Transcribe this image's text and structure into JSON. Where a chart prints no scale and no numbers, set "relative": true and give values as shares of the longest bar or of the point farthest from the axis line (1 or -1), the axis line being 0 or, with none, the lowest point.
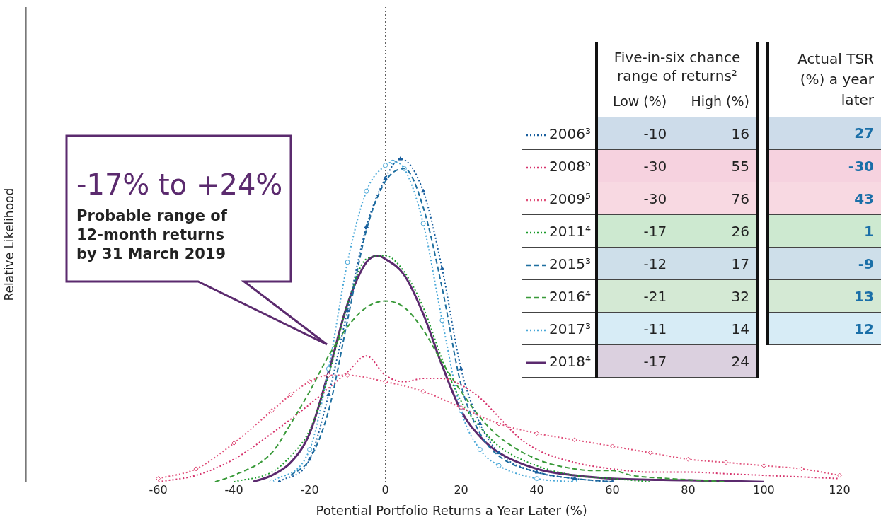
{
  "chart_data": {
    "type": "line",
    "relative": true,
    "xlabel": "Potential Portfolio Returns a Year Later (%)",
    "ylabel": "Relative Likelihood",
    "xlim": [
      -95,
      130
    ],
    "xticks": [
      -60,
      -40,
      -20,
      0,
      20,
      40,
      60,
      80,
      100,
      120
    ],
    "tick_labels": "x",
    "grid": false,
    "legend": "right",
    "ref_lines": [
      {
        "axis": "x",
        "value": 0,
        "color": "#555555",
        "line_style": "dotted"
      }
    ],
    "annotations": [
      "-17% to +24%",
      "Probable range of 12-month returns by 31 March 2019",
      "Five-in-six chance range of returns²",
      "Low (%)",
      "High (%)",
      "Actual TSR (%) a year later",
      "-10",
      "16",
      "27",
      "-30",
      "55",
      "-30",
      "-30",
      "76",
      "43",
      "-17",
      "26",
      "1",
      "-12",
      "17",
      "-9",
      "-21",
      "32",
      "13",
      "-11",
      "14",
      "12",
      "-17",
      "24",
      null
    ],
    "series": [
      {
        "name": "2006³",
        "color": "#1a5f9e",
        "line_style": "dotted",
        "marker": "triangle",
        "x": [
          -28,
          -20,
          -15,
          -10,
          -5,
          0,
          4,
          10,
          15,
          20,
          25,
          30,
          40,
          50,
          60
        ],
        "values": [
          0,
          0.07,
          0.27,
          0.53,
          0.79,
          0.94,
          1,
          0.9,
          0.66,
          0.35,
          0.18,
          0.09,
          0.03,
          0.01,
          0
        ]
      },
      {
        "name": "2008⁵",
        "color": "#d6336c",
        "line_style": "dotted",
        "marker": "none",
        "x": [
          -60,
          -50,
          -40,
          -30,
          -20,
          -15,
          -10,
          -5,
          0,
          5,
          10,
          15,
          20,
          25,
          30,
          35,
          40,
          50,
          60,
          70,
          80,
          90,
          100,
          110,
          120
        ],
        "values": [
          0,
          0.02,
          0.07,
          0.15,
          0.24,
          0.29,
          0.34,
          0.39,
          0.33,
          0.31,
          0.32,
          0.32,
          0.3,
          0.26,
          0.2,
          0.14,
          0.1,
          0.06,
          0.04,
          0.03,
          0.03,
          0.025,
          0.02,
          0.015,
          0.01
        ]
      },
      {
        "name": "2009⁵",
        "color": "#e0507a",
        "line_style": "dotted",
        "marker": "diamond",
        "x": [
          -60,
          -50,
          -40,
          -30,
          -25,
          -20,
          -15,
          -10,
          0,
          10,
          20,
          30,
          40,
          50,
          60,
          70,
          80,
          90,
          100,
          110,
          120
        ],
        "values": [
          0.01,
          0.04,
          0.12,
          0.22,
          0.27,
          0.31,
          0.33,
          0.33,
          0.31,
          0.28,
          0.23,
          0.18,
          0.15,
          0.13,
          0.11,
          0.09,
          0.07,
          0.06,
          0.05,
          0.04,
          0.02
        ]
      },
      {
        "name": "2011⁴",
        "color": "#1a9a2a",
        "line_style": "dotted",
        "marker": "none",
        "x": [
          -40,
          -30,
          -25,
          -20,
          -15,
          -10,
          -5,
          0,
          5,
          10,
          15,
          20,
          25,
          30,
          40,
          50,
          60,
          70
        ],
        "values": [
          0,
          0.03,
          0.08,
          0.16,
          0.33,
          0.55,
          0.69,
          0.7,
          0.65,
          0.54,
          0.38,
          0.25,
          0.17,
          0.11,
          0.05,
          0.02,
          0.01,
          0
        ]
      },
      {
        "name": "2015³",
        "color": "#1f6fa0",
        "line_style": "dashed",
        "marker": "none",
        "x": [
          -25,
          -20,
          -15,
          -10,
          -5,
          0,
          5,
          10,
          15,
          20,
          25,
          30,
          40,
          50,
          60
        ],
        "values": [
          0.02,
          0.07,
          0.22,
          0.5,
          0.78,
          0.93,
          0.97,
          0.85,
          0.6,
          0.3,
          0.15,
          0.08,
          0.03,
          0.01,
          0
        ]
      },
      {
        "name": "2016⁴",
        "color": "#3a9a3a",
        "line_style": "dashed",
        "marker": "none",
        "x": [
          -45,
          -40,
          -30,
          -25,
          -20,
          -15,
          -10,
          -5,
          0,
          5,
          10,
          15,
          20,
          25,
          30,
          40,
          50,
          55,
          60,
          65,
          75,
          90
        ],
        "values": [
          0,
          0.02,
          0.09,
          0.18,
          0.28,
          0.39,
          0.48,
          0.54,
          0.56,
          0.54,
          0.47,
          0.37,
          0.28,
          0.2,
          0.14,
          0.07,
          0.04,
          0.035,
          0.035,
          0.02,
          0.01,
          0
        ]
      },
      {
        "name": "2017³",
        "color": "#4aa8d8",
        "line_style": "dotted",
        "marker": "circle",
        "x": [
          -30,
          -20,
          -15,
          -10,
          -5,
          0,
          2,
          5,
          10,
          15,
          20,
          25,
          30,
          40,
          50
        ],
        "values": [
          0,
          0.1,
          0.35,
          0.68,
          0.9,
          0.98,
          0.99,
          0.97,
          0.8,
          0.5,
          0.22,
          0.1,
          0.05,
          0.01,
          0
        ]
      },
      {
        "name": "2018⁴",
        "color": "#5b2a6e",
        "line_style": "solid",
        "marker": "none",
        "x": [
          -35,
          -30,
          -25,
          -20,
          -15,
          -10,
          -5,
          -2,
          0,
          5,
          10,
          15,
          20,
          25,
          30,
          40,
          50,
          60,
          80,
          100
        ],
        "values": [
          0,
          0.02,
          0.06,
          0.15,
          0.34,
          0.55,
          0.68,
          0.7,
          0.69,
          0.64,
          0.52,
          0.36,
          0.22,
          0.14,
          0.09,
          0.04,
          0.02,
          0.01,
          0.005,
          0
        ]
      }
    ]
  }
}
